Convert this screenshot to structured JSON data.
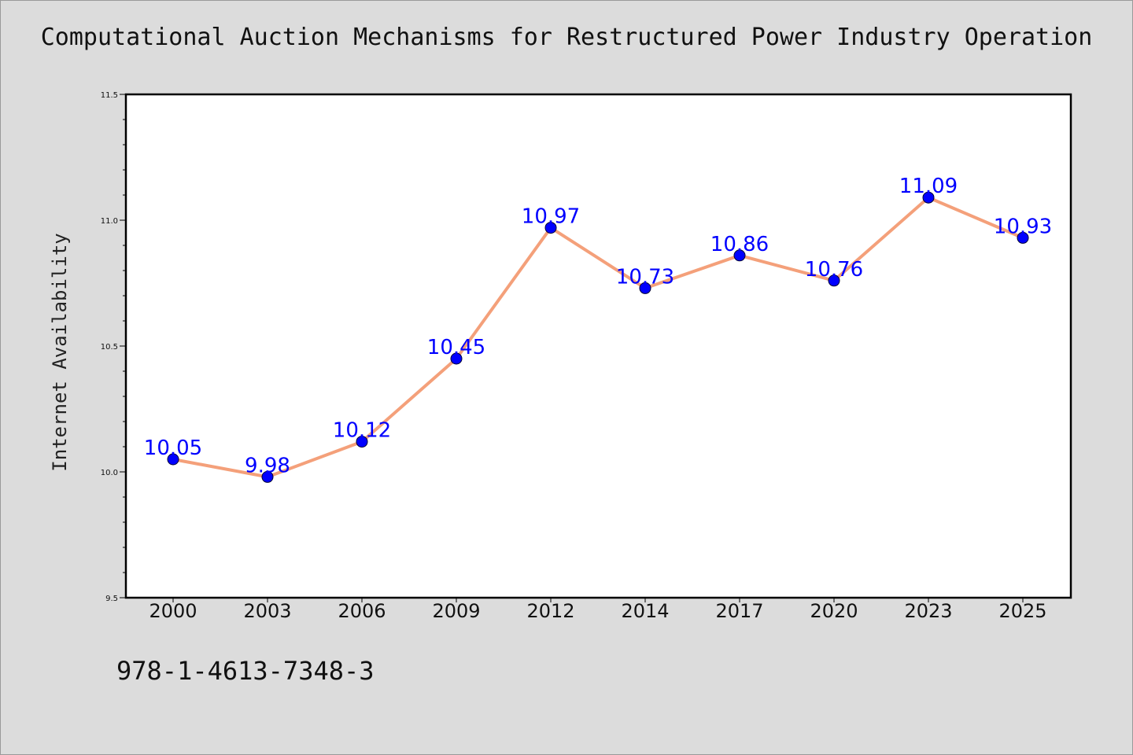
{
  "chart_data": {
    "type": "line",
    "title": "Computational Auction Mechanisms for Restructured Power Industry Operation",
    "xlabel": "",
    "ylabel": "Internet Availability",
    "categories": [
      "2000",
      "2003",
      "2006",
      "2009",
      "2012",
      "2014",
      "2017",
      "2020",
      "2023",
      "2025"
    ],
    "series": [
      {
        "values": [
          10.05,
          9.98,
          10.12,
          10.45,
          10.97,
          10.73,
          10.86,
          10.76,
          11.09,
          10.93
        ],
        "line_color": "#f4a07a",
        "marker_color": "#0000ff"
      }
    ],
    "data_labels": [
      "10.05",
      "9.98",
      "10.12",
      "10.45",
      "10.97",
      "10.73",
      "10.86",
      "10.76",
      "11.09",
      "10.93"
    ],
    "ylim": [
      9.5,
      11.5
    ],
    "yticks": [
      9.5,
      10.0,
      10.5,
      11.0,
      11.5
    ],
    "ytick_labels": [
      "9.5",
      "10.0",
      "10.5",
      "11.0",
      "11.5"
    ],
    "grid": false,
    "label_color": "#0000ff"
  },
  "footer": {
    "isbn": "978-1-4613-7348-3"
  }
}
